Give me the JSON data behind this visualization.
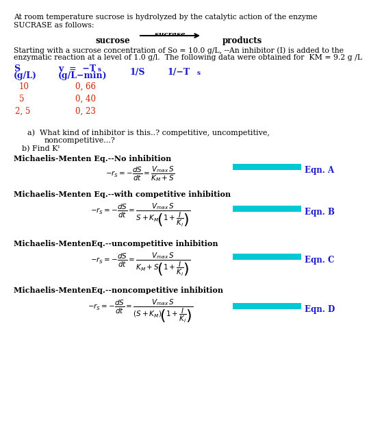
{
  "bg_color": "#ffffff",
  "text_color": "#000000",
  "blue_color": "#1a1acd",
  "red_color": "#cc2200",
  "cyan_color": "#00c8d4",
  "title_text1": "At room temperature sucrose is hydrolyzed by the catalytic action of the enzyme",
  "title_text2": "SUCRASE as follows:",
  "body_text1": "Starting with a sucrose concentration of So = 10.0 g/L, --An inhibitor (I) is added to the",
  "body_text2": "enzymatic reaction at a level of 1.0 g/l.  The following data were obtained for  KM = 9.2 g /L",
  "eqn_labels": [
    "Michaelis-Menten Eq.--No inhibition",
    "Michaelis-Menten Eq.--with competitive inhibition",
    "Michaelis-MentenEq.--uncompetitive inhibition",
    "Michaelis-MentenEq.--noncompetitive inhibition"
  ],
  "eqn_names": [
    "Eqn. A",
    "Eqn. B",
    "Eqn. C",
    "Eqn. D"
  ]
}
